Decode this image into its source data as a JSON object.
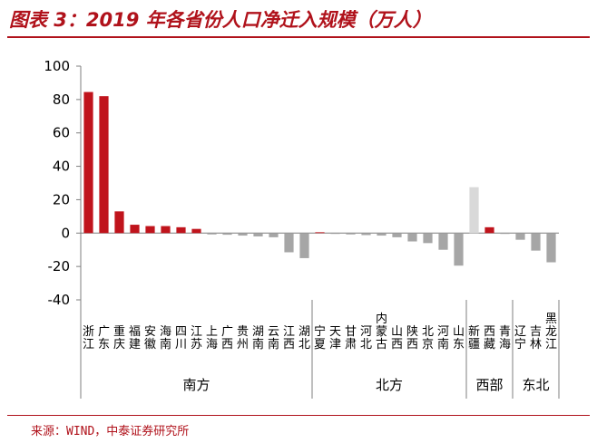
{
  "title": "图表 3：2019 年各省份人口净迁入规模（万人）",
  "source": "来源：WIND，中泰证券研究所",
  "colors": {
    "accent": "#b0121b",
    "bar_positive": "#c0141c",
    "bar_negative": "#a6a6a6",
    "bar_light": "#d9d9d9"
  },
  "chart_data": {
    "type": "bar",
    "title": "",
    "xlabel": "",
    "ylabel": "",
    "ylim": [
      -40,
      100
    ],
    "yticks": [
      100,
      80,
      60,
      40,
      20,
      0,
      -20,
      -40
    ],
    "grid": false,
    "categories": [
      "浙江",
      "广东",
      "重庆",
      "福建",
      "安徽",
      "海南",
      "四川",
      "江苏",
      "上海",
      "广西",
      "贵州",
      "湖南",
      "云南",
      "江西",
      "湖北",
      "宁夏",
      "天津",
      "甘肃",
      "河北",
      "内蒙古",
      "山西",
      "陕西",
      "北京",
      "河南",
      "山东",
      "新疆",
      "西藏",
      "青海",
      "辽宁",
      "吉林",
      "黑龙江"
    ],
    "values": [
      84.5,
      82,
      13,
      5,
      4.2,
      4.2,
      3.5,
      2.5,
      -0.8,
      -1,
      -1.5,
      -2,
      -2.5,
      -11.5,
      -15,
      0.5,
      -0.5,
      -0.8,
      -1.2,
      -1.5,
      -2.5,
      -5,
      -6,
      -10,
      -19.5,
      27.5,
      3.5,
      -0.5,
      -4,
      -10.5,
      -17.5
    ],
    "groups": [
      {
        "name": "南方",
        "count": 15
      },
      {
        "name": "北方",
        "count": 10
      },
      {
        "name": "西部",
        "count": 3
      },
      {
        "name": "东北",
        "count": 3
      }
    ]
  }
}
